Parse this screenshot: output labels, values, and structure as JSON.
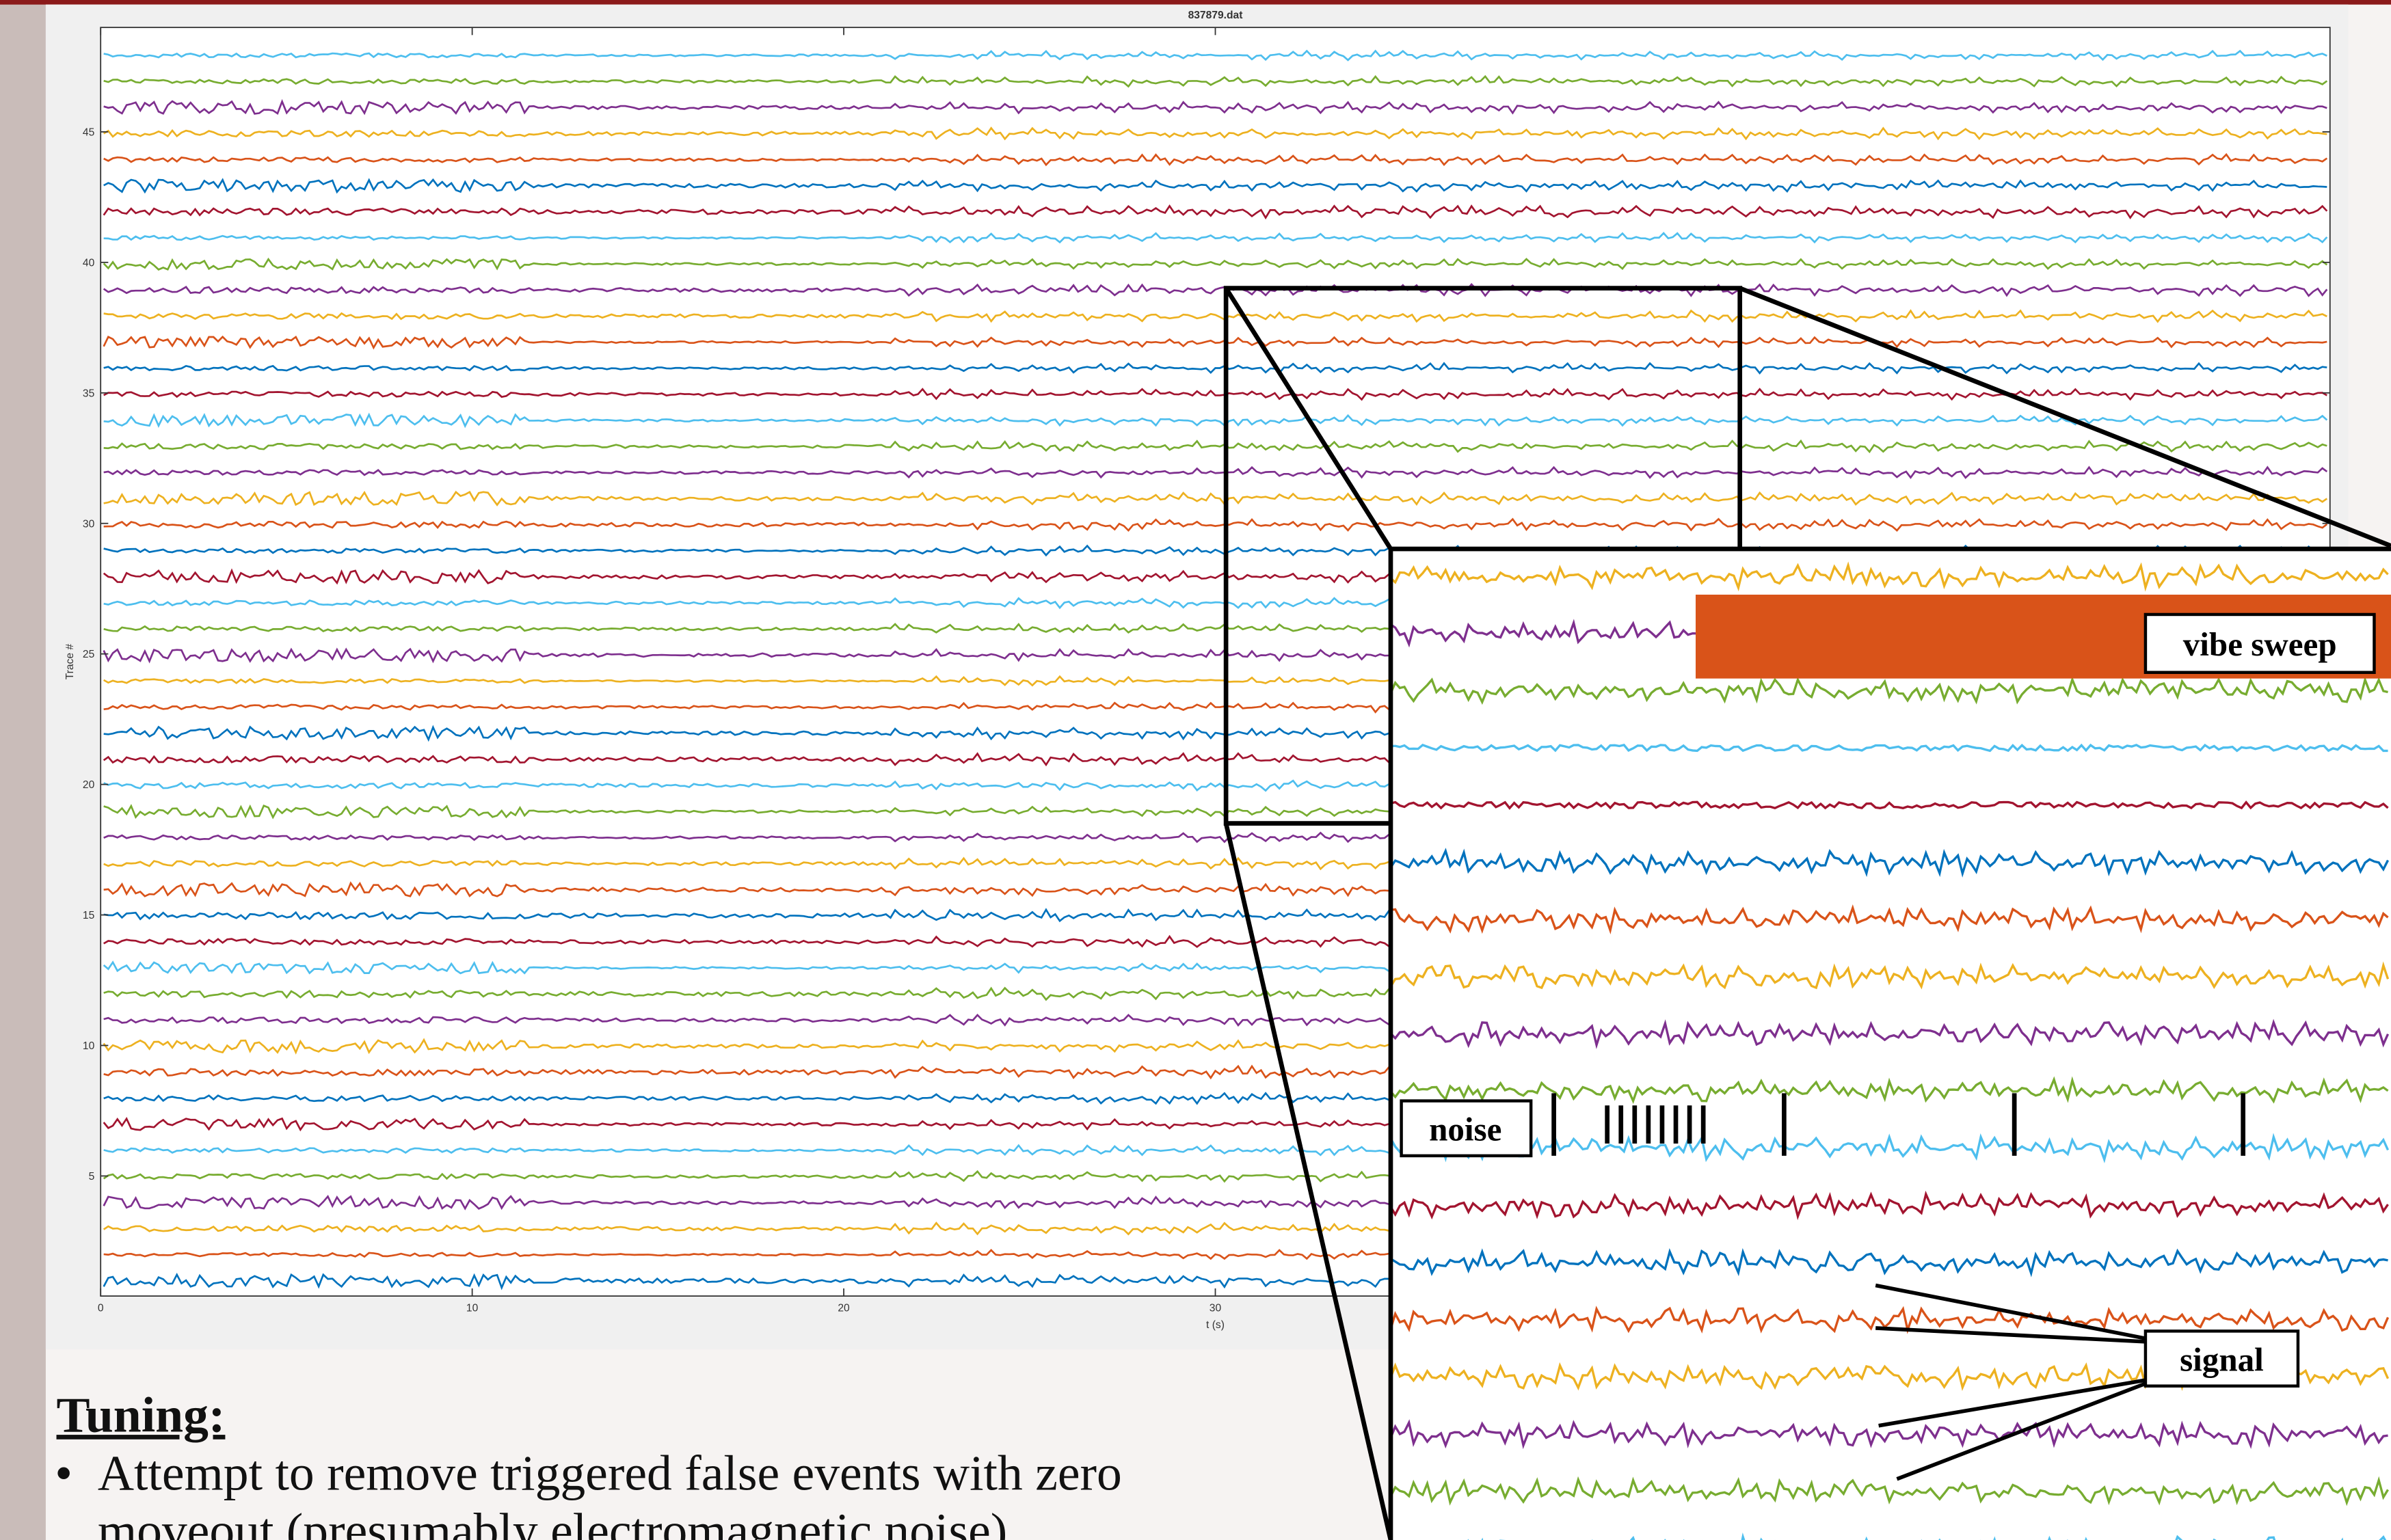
{
  "figure": {
    "title": "837879.dat",
    "xlabel": "t (s)",
    "ylabel": "Trace #",
    "xlim": [
      0,
      60
    ],
    "ylim": [
      0.4,
      49
    ],
    "xticks": [
      0,
      10,
      20,
      30
    ],
    "yticks": [
      5,
      10,
      15,
      20,
      25,
      30,
      35,
      40,
      45
    ]
  },
  "callouts": [
    "vibe sweep",
    "noise",
    "signal"
  ],
  "slide": {
    "heading": "Tuning:",
    "bullets": [
      "Attempt to remove triggered false events with zero moveout (presumably electromagnetic noise)"
    ]
  }
}
